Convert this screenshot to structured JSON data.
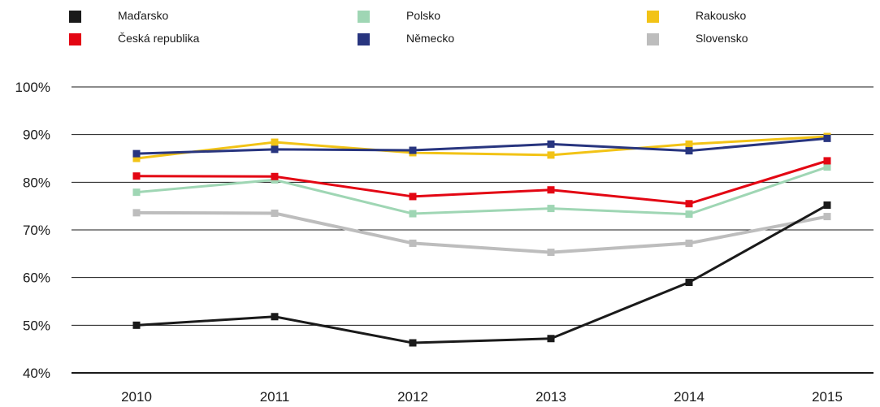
{
  "chart_data": {
    "type": "line",
    "title": "",
    "xlabel": "",
    "ylabel": "",
    "categories": [
      "2010",
      "2011",
      "2012",
      "2013",
      "2014",
      "2015"
    ],
    "y_ticks": [
      "40%",
      "50%",
      "60%",
      "70%",
      "80%",
      "90%",
      "100%"
    ],
    "ylim": [
      40,
      100
    ],
    "grid": "horizontal",
    "legend_position": "top",
    "series": [
      {
        "name": "Maďarsko",
        "color": "#1a1a1a",
        "values": [
          50.0,
          51.8,
          46.3,
          47.2,
          59.0,
          75.2
        ]
      },
      {
        "name": "Česká republika",
        "color": "#e30613",
        "values": [
          81.3,
          81.2,
          77.0,
          78.4,
          75.5,
          84.5
        ]
      },
      {
        "name": "Polsko",
        "color": "#9fd6b4",
        "values": [
          77.9,
          80.5,
          73.4,
          74.5,
          73.3,
          83.2
        ]
      },
      {
        "name": "Německo",
        "color": "#28357f",
        "values": [
          86.0,
          86.9,
          86.7,
          88.0,
          86.6,
          89.2
        ]
      },
      {
        "name": "Rakousko",
        "color": "#f2c316",
        "values": [
          85.0,
          88.4,
          86.2,
          85.7,
          88.0,
          89.6
        ]
      },
      {
        "name": "Slovensko",
        "color": "#bdbdbd",
        "values": [
          73.6,
          73.5,
          67.2,
          65.3,
          67.2,
          72.8
        ]
      }
    ]
  }
}
